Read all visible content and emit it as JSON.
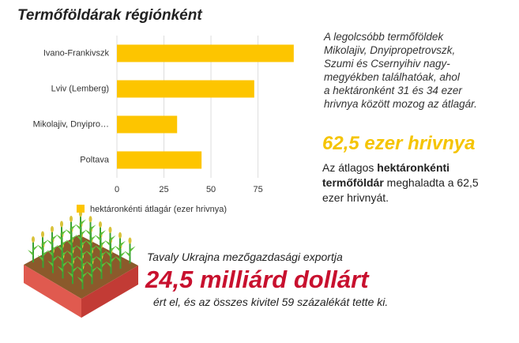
{
  "chart_data": {
    "type": "bar",
    "orientation": "horizontal",
    "title": "Termőföldárak régiónként",
    "categories": [
      "Ivano-Frankivszk",
      "Lviv (Lemberg)",
      "Mikolajiv, Dnyipro…",
      "Poltava"
    ],
    "series": [
      {
        "name": "hektáronkénti átlagár (ezer hrivnya)",
        "color": "#fdc500",
        "values": [
          94,
          73,
          32,
          45
        ]
      }
    ],
    "xlim": [
      0,
      97
    ],
    "xticks": [
      0,
      25,
      50,
      75
    ],
    "grid": true,
    "legend": "bottom"
  },
  "sidebar": {
    "note": [
      "A legolcsóbb termőföldek",
      "Mikolajiv, Dnyipropetrovszk,",
      "Szumi és Csernyihiv nagy-",
      "megyékben találhatóak, ahol",
      "a hektáronként 31 és 34 ezer",
      "hrivnya között mozog az átlagár."
    ],
    "highlight": "62,5 ezer hrivnya",
    "description": [
      "Az átlagos ",
      "hektáronkénti termőföldár",
      " meghaladta a 62,5 ezer hrivnyát."
    ]
  },
  "footer": {
    "intro": "Tavaly Ukrajna mezőgazdasági exportja",
    "highlight": "24,5 milliárd dollárt",
    "outro": "ért el, és az összes kivitel 59 százalékát tette ki."
  }
}
